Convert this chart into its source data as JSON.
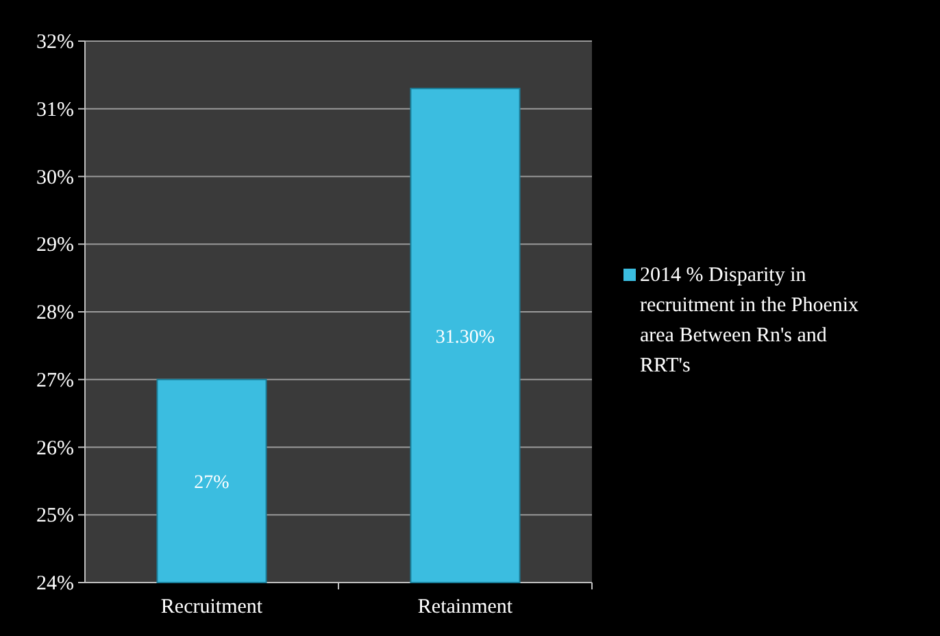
{
  "chart_data": {
    "type": "bar",
    "categories": [
      "Recruitment",
      "Retainment"
    ],
    "series": [
      {
        "name": "2014 % Disparity in recruitment  in the Phoenix area Between Rn's and RRT's",
        "color": "#3bbde0",
        "values": [
          27,
          31.3
        ],
        "value_labels": [
          "27%",
          "31.30%"
        ]
      }
    ],
    "ylim": [
      24,
      32
    ],
    "yticks": [
      {
        "value": 24,
        "label": "24%"
      },
      {
        "value": 25,
        "label": "25%"
      },
      {
        "value": 26,
        "label": "26%"
      },
      {
        "value": 27,
        "label": "27%"
      },
      {
        "value": 28,
        "label": "28%"
      },
      {
        "value": 29,
        "label": "29%"
      },
      {
        "value": 30,
        "label": "30%"
      },
      {
        "value": 31,
        "label": "31%"
      },
      {
        "value": 32,
        "label": "32%"
      }
    ],
    "grid": "y",
    "legend": "right"
  }
}
